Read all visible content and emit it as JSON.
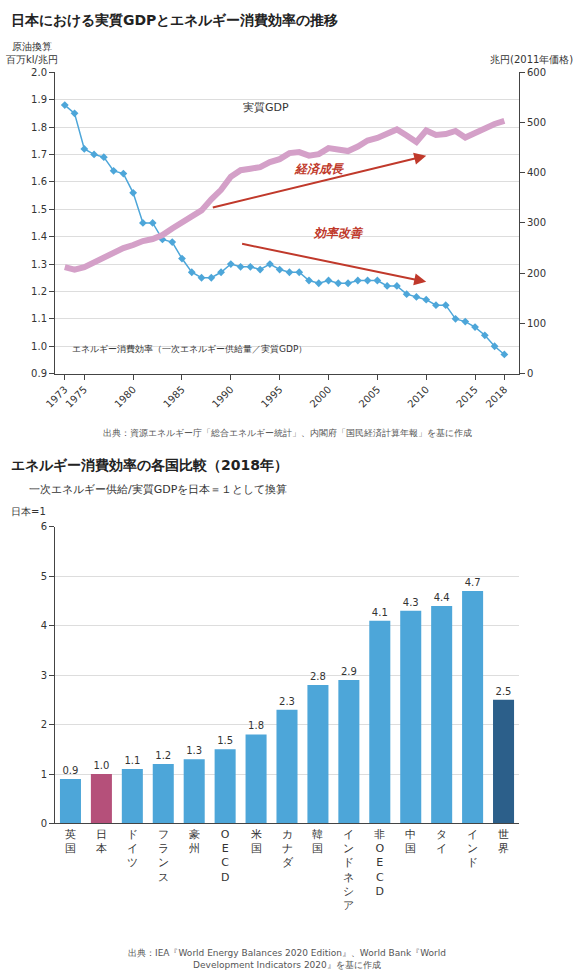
{
  "chart_data": [
    {
      "type": "line",
      "title": "日本における実質GDPとエネルギー消費効率の推移",
      "source": "出典：資源エネルギー庁「総合エネルギー統計」、内閣府「国民経済計算年報」を基に作成",
      "ylabel": "原油換算\n百万kl/兆円",
      "y2label": "兆円(2011年価格)",
      "x": [
        1973,
        1974,
        1975,
        1976,
        1977,
        1978,
        1979,
        1980,
        1981,
        1982,
        1983,
        1984,
        1985,
        1986,
        1987,
        1988,
        1989,
        1990,
        1991,
        1992,
        1993,
        1994,
        1995,
        1996,
        1997,
        1998,
        1999,
        2000,
        2001,
        2002,
        2003,
        2004,
        2005,
        2006,
        2007,
        2008,
        2009,
        2010,
        2011,
        2012,
        2013,
        2014,
        2015,
        2016,
        2017,
        2018
      ],
      "series": [
        {
          "name": "実質GDP",
          "color": "#d4a0c8",
          "axis": "y2",
          "values": [
            212,
            207,
            212,
            222,
            231,
            242,
            250,
            256,
            264,
            268,
            276,
            289,
            300,
            311,
            325,
            347,
            366,
            392,
            405,
            408,
            411,
            421,
            427,
            439,
            441,
            434,
            437,
            449,
            445,
            443,
            452,
            464,
            469,
            476,
            486,
            474,
            461,
            484,
            475,
            477,
            483,
            470,
            480,
            487,
            497,
            503
          ]
        },
        {
          "name": "エネルギー消費効率（一次エネルギー供給量／実質GDP）",
          "color": "#4da6d9",
          "marker": "diamond",
          "values": [
            1.88,
            1.85,
            1.72,
            1.7,
            1.69,
            1.64,
            1.63,
            1.56,
            1.45,
            1.45,
            1.39,
            1.38,
            1.32,
            1.27,
            1.25,
            1.25,
            1.27,
            1.3,
            1.29,
            1.29,
            1.28,
            1.3,
            1.28,
            1.27,
            1.27,
            1.24,
            1.23,
            1.24,
            1.23,
            1.23,
            1.24,
            1.24,
            1.24,
            1.22,
            1.22,
            1.19,
            1.18,
            1.17,
            1.15,
            1.15,
            1.1,
            1.09,
            1.07,
            1.04,
            1.0,
            0.97
          ]
        }
      ],
      "annotations": [
        {
          "text": "経済成長",
          "color": "#c0392b"
        },
        {
          "text": "効率改善",
          "color": "#c0392b"
        }
      ],
      "xlim": [
        1972,
        2019.5
      ],
      "xticks": [
        1973,
        1975,
        1980,
        1985,
        1990,
        1995,
        2000,
        2005,
        2010,
        2015,
        2018
      ],
      "ylim": [
        0.9,
        2.0
      ],
      "yticks": [
        0.9,
        {
          "value": 1,
          "label": "1.0"
        },
        1.1,
        1.2,
        1.3,
        1.4,
        1.5,
        1.6,
        1.7,
        1.8,
        1.9,
        {
          "value": 2,
          "label": "2.0"
        }
      ],
      "y2lim": [
        0,
        600
      ],
      "y2ticks": [
        0,
        100,
        200,
        300,
        400,
        500,
        600
      ],
      "grid": true
    },
    {
      "type": "bar",
      "title": "エネルギー消費効率の各国比較（2018年）",
      "subtitle": "一次エネルギー供給/実質GDPを日本＝１として換算",
      "source": "出典：IEA『World Energy Balances 2020 Edition』、World Bank『World\nDevelopment Indicators 2020』を基に作成",
      "ylabel": "日本=1",
      "categories": [
        "英\n国",
        "日\n本",
        "ド\nイ\nツ",
        "フ\nラ\nン\nス",
        "豪\n州",
        "O\nE\nC\nD",
        "米\n国",
        "カ\nナ\nダ",
        "韓\n国",
        "イ\nン\nド\nネ\nシ\nア",
        "非\nO\nE\nC\nD",
        "中\n国",
        "タ\nイ",
        "イ\nン\nド",
        "世\n界"
      ],
      "values": [
        0.9,
        1.0,
        1.1,
        1.2,
        1.3,
        1.5,
        1.8,
        2.3,
        2.8,
        2.9,
        4.1,
        4.3,
        4.4,
        4.7,
        2.5
      ],
      "value_labels": [
        "0.9",
        "1.0",
        "1.1",
        "1.2",
        "1.3",
        "1.5",
        "1.8",
        "2.3",
        "2.8",
        "2.9",
        "4.1",
        "4.3",
        "4.4",
        "4.7",
        "2.5"
      ],
      "colors": [
        "#4da6d9",
        "#b5507a",
        "#4da6d9",
        "#4da6d9",
        "#4da6d9",
        "#4da6d9",
        "#4da6d9",
        "#4da6d9",
        "#4da6d9",
        "#4da6d9",
        "#4da6d9",
        "#4da6d9",
        "#4da6d9",
        "#4da6d9",
        "#2c5f8a"
      ],
      "ylim": [
        0,
        6
      ],
      "yticks": [
        0,
        1,
        2,
        3,
        4,
        5,
        6
      ],
      "grid": true,
      "data_labels": true
    }
  ]
}
